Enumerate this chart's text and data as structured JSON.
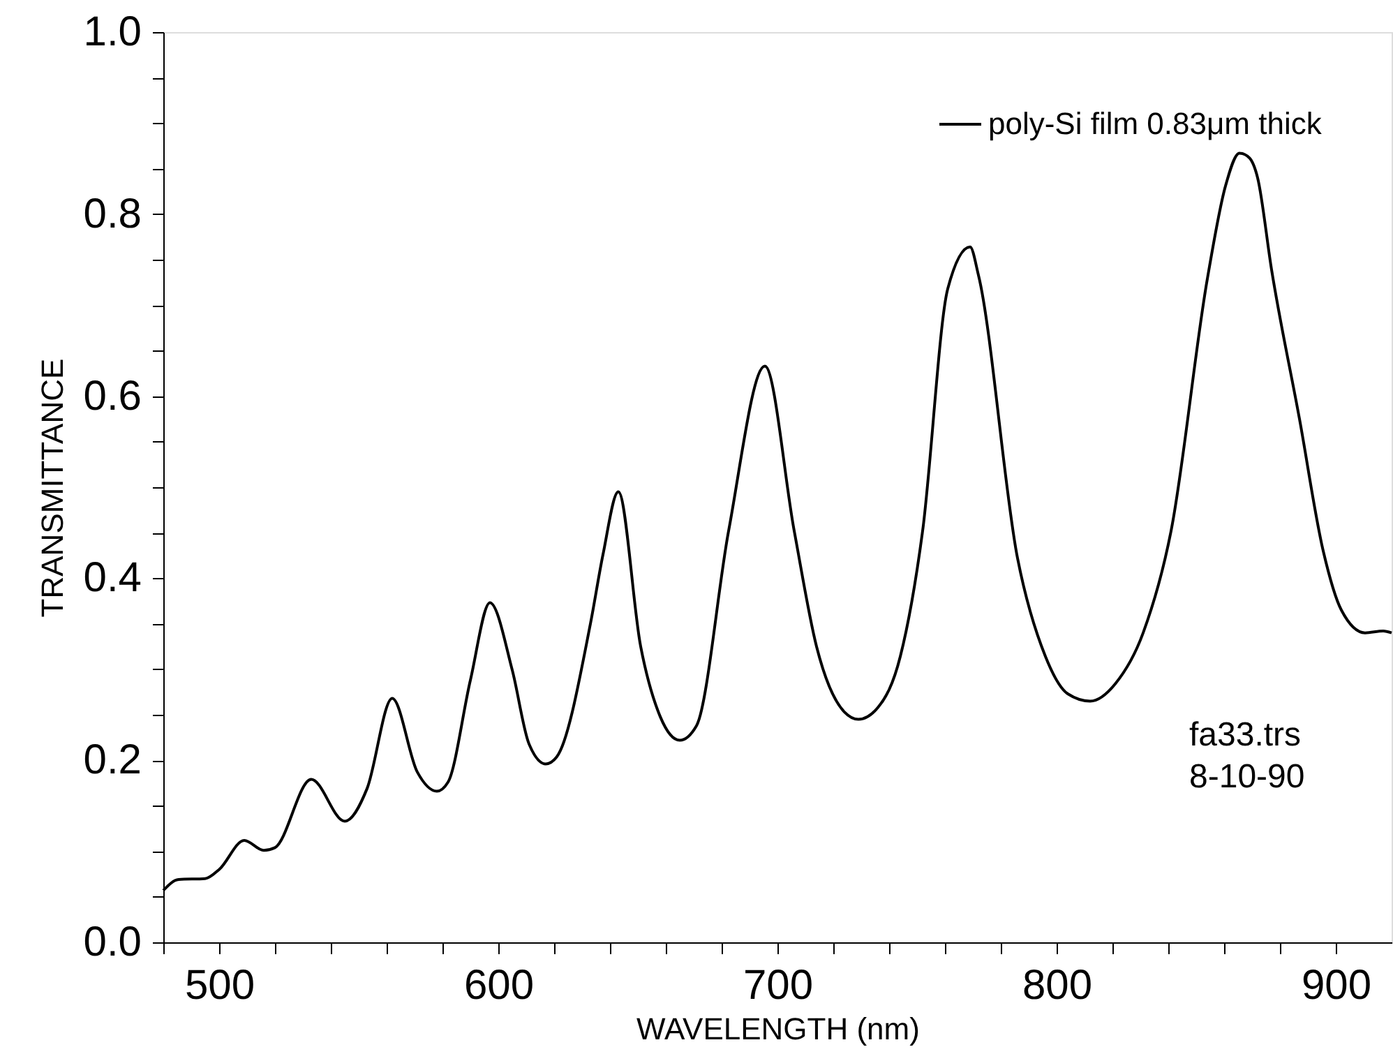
{
  "chart_data": {
    "type": "line",
    "xlabel": "WAVELENGTH (nm)",
    "ylabel": "TRANSMITTANCE",
    "xlim": [
      480,
      920
    ],
    "ylim": [
      0,
      1
    ],
    "xticks": [
      {
        "value": 480,
        "label": null
      },
      {
        "value": 500,
        "label": "500"
      },
      {
        "value": 520,
        "label": null
      },
      {
        "value": 540,
        "label": null
      },
      {
        "value": 560,
        "label": null
      },
      {
        "value": 580,
        "label": null
      },
      {
        "value": 600,
        "label": "600"
      },
      {
        "value": 620,
        "label": null
      },
      {
        "value": 640,
        "label": null
      },
      {
        "value": 660,
        "label": null
      },
      {
        "value": 680,
        "label": null
      },
      {
        "value": 700,
        "label": "700"
      },
      {
        "value": 720,
        "label": null
      },
      {
        "value": 740,
        "label": null
      },
      {
        "value": 760,
        "label": null
      },
      {
        "value": 780,
        "label": null
      },
      {
        "value": 800,
        "label": "800"
      },
      {
        "value": 820,
        "label": null
      },
      {
        "value": 840,
        "label": null
      },
      {
        "value": 860,
        "label": null
      },
      {
        "value": 880,
        "label": null
      },
      {
        "value": 900,
        "label": "900"
      }
    ],
    "yticks": [
      {
        "value": 0,
        "label": "0.0"
      },
      {
        "value": 0.05,
        "label": null
      },
      {
        "value": 0.1,
        "label": null
      },
      {
        "value": 0.15,
        "label": null
      },
      {
        "value": 0.2,
        "label": "0.2"
      },
      {
        "value": 0.25,
        "label": null
      },
      {
        "value": 0.3,
        "label": null
      },
      {
        "value": 0.35,
        "label": null
      },
      {
        "value": 0.4,
        "label": "0.4"
      },
      {
        "value": 0.45,
        "label": null
      },
      {
        "value": 0.5,
        "label": null
      },
      {
        "value": 0.55,
        "label": null
      },
      {
        "value": 0.6,
        "label": "0.6"
      },
      {
        "value": 0.65,
        "label": null
      },
      {
        "value": 0.7,
        "label": null
      },
      {
        "value": 0.75,
        "label": null
      },
      {
        "value": 0.8,
        "label": "0.8"
      },
      {
        "value": 0.85,
        "label": null
      },
      {
        "value": 0.9,
        "label": null
      },
      {
        "value": 0.95,
        "label": null
      },
      {
        "value": 1,
        "label": "1.0"
      }
    ],
    "grid": false,
    "legend": "top right",
    "line_style": "solid",
    "annotations": [
      "fa33.trs",
      "8-10-90"
    ],
    "series": [
      {
        "name": "poly-Si film 0.83μm thick",
        "color": "#000000",
        "x": [
          480,
          485.5,
          495,
          500,
          509,
          516,
          520,
          533,
          545,
          553,
          562,
          571,
          578,
          582,
          590,
          597,
          605,
          611,
          617,
          621,
          633,
          637.5,
          643,
          651,
          658,
          665,
          671,
          682.5,
          695.5,
          706,
          714,
          724,
          729,
          736,
          744,
          752,
          761,
          769,
          772,
          786,
          796,
          804,
          812,
          821,
          831,
          841,
          854,
          860.5,
          865.5,
          869,
          872,
          877,
          887,
          895.5,
          902,
          910.5,
          917,
          920
        ],
        "values": [
          0.057,
          0.069,
          0.07,
          0.08,
          0.112,
          0.101,
          0.104,
          0.179,
          0.133,
          0.169,
          0.268,
          0.187,
          0.166,
          0.176,
          0.288,
          0.373,
          0.299,
          0.218,
          0.196,
          0.204,
          0.35,
          0.426,
          0.495,
          0.325,
          0.248,
          0.222,
          0.238,
          0.452,
          0.633,
          0.452,
          0.325,
          0.253,
          0.245,
          0.258,
          0.314,
          0.452,
          0.718,
          0.764,
          0.733,
          0.422,
          0.314,
          0.273,
          0.265,
          0.284,
          0.34,
          0.452,
          0.729,
          0.831,
          0.867,
          0.862,
          0.84,
          0.739,
          0.575,
          0.43,
          0.365,
          0.34,
          0.342,
          0.34
        ]
      }
    ]
  }
}
